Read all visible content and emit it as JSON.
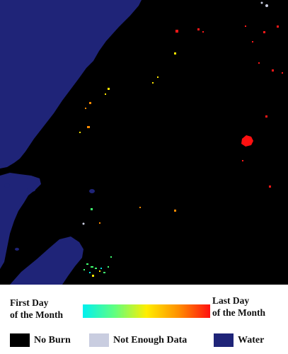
{
  "colors": {
    "no_burn": "#000000",
    "not_enough_data": "#c9cde0",
    "water": "#1f2478",
    "ramp": [
      "#00f0f0",
      "#60ff80",
      "#ffee00",
      "#ff9000",
      "#ff1010"
    ]
  },
  "legend": {
    "first_day": "First Day\nof the Month",
    "last_day": "Last Day\nof the Month",
    "no_burn": "No Burn",
    "not_enough_data": "Not Enough Data",
    "water": "Water"
  }
}
